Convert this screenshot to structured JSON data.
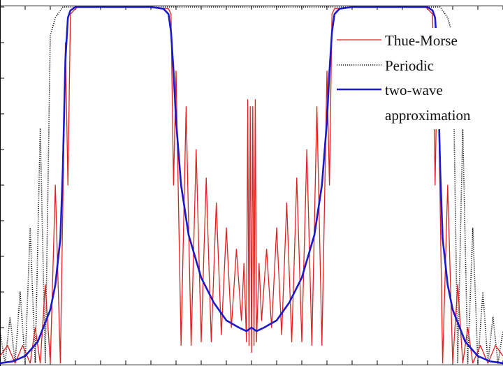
{
  "chart_data": {
    "type": "line",
    "title": "",
    "xlabel": "",
    "ylabel": "",
    "xlim": [
      -1.0,
      1.0
    ],
    "ylim": [
      0.0,
      1.0
    ],
    "grid": false,
    "legend_position": "top-right",
    "legend": {
      "entries": [
        "Thue-Morse",
        "Periodic",
        "two-wave",
        "approximation"
      ]
    },
    "series": [
      {
        "name": "Thue-Morse",
        "style": "solid",
        "color": "#e02020",
        "x": [
          -1.0,
          -0.97,
          -0.94,
          -0.91,
          -0.88,
          -0.86,
          -0.84,
          -0.82,
          -0.8,
          -0.78,
          -0.76,
          -0.74,
          -0.73,
          -0.72,
          -0.7,
          -0.69,
          -0.68,
          -0.6,
          -0.4,
          -0.33,
          -0.32,
          -0.31,
          -0.3,
          -0.28,
          -0.26,
          -0.24,
          -0.22,
          -0.2,
          -0.18,
          -0.16,
          -0.14,
          -0.12,
          -0.1,
          -0.08,
          -0.06,
          -0.04,
          -0.03,
          -0.02,
          -0.015,
          -0.01,
          -0.005,
          0.0,
          0.005,
          0.01,
          0.015,
          0.02,
          0.03,
          0.04,
          0.06,
          0.08,
          0.1,
          0.12,
          0.14,
          0.16,
          0.18,
          0.2,
          0.22,
          0.24,
          0.26,
          0.28,
          0.3,
          0.31,
          0.32,
          0.33,
          0.4,
          0.6,
          0.68,
          0.69,
          0.7,
          0.72,
          0.73,
          0.74,
          0.76,
          0.78,
          0.8,
          0.82,
          0.84,
          0.86,
          0.88,
          0.91,
          0.94,
          0.97,
          1.0
        ],
        "y": [
          0.02,
          0.05,
          0.0,
          0.05,
          0.0,
          0.1,
          0.0,
          0.22,
          0.0,
          0.5,
          0.0,
          0.9,
          0.5,
          0.98,
          0.995,
          1.0,
          1.0,
          1.0,
          1.0,
          0.995,
          0.98,
          0.5,
          0.82,
          0.05,
          0.72,
          0.05,
          0.6,
          0.06,
          0.52,
          0.06,
          0.45,
          0.08,
          0.38,
          0.1,
          0.32,
          0.12,
          0.28,
          0.06,
          0.74,
          0.05,
          0.72,
          0.03,
          0.72,
          0.05,
          0.74,
          0.06,
          0.28,
          0.12,
          0.32,
          0.1,
          0.38,
          0.08,
          0.45,
          0.06,
          0.52,
          0.06,
          0.6,
          0.05,
          0.72,
          0.05,
          0.82,
          0.5,
          0.98,
          0.995,
          1.0,
          1.0,
          1.0,
          1.0,
          0.995,
          0.98,
          0.5,
          0.9,
          0.0,
          0.5,
          0.0,
          0.22,
          0.0,
          0.1,
          0.0,
          0.05,
          0.0,
          0.05,
          0.02
        ]
      },
      {
        "name": "Periodic",
        "style": "dotted",
        "color": "#111111",
        "x": [
          -1.0,
          -0.98,
          -0.96,
          -0.94,
          -0.92,
          -0.9,
          -0.88,
          -0.86,
          -0.84,
          -0.82,
          -0.8,
          -0.78,
          -0.76,
          -0.75,
          -0.74,
          -0.73,
          -0.72,
          -0.6,
          -0.4,
          -0.2,
          0.0,
          0.2,
          0.4,
          0.6,
          0.72,
          0.73,
          0.74,
          0.75,
          0.76,
          0.78,
          0.8,
          0.82,
          0.84,
          0.86,
          0.88,
          0.9,
          0.92,
          0.94,
          0.96,
          0.98,
          1.0
        ],
        "y": [
          0.09,
          0.0,
          0.13,
          0.0,
          0.2,
          0.0,
          0.38,
          0.0,
          0.66,
          0.0,
          0.92,
          0.97,
          0.99,
          1.0,
          1.0,
          1.0,
          1.0,
          1.0,
          1.0,
          1.0,
          1.0,
          1.0,
          1.0,
          1.0,
          1.0,
          1.0,
          1.0,
          1.0,
          0.99,
          0.97,
          0.92,
          0.0,
          0.66,
          0.0,
          0.38,
          0.0,
          0.2,
          0.0,
          0.13,
          0.0,
          0.09
        ]
      },
      {
        "name": "two-wave approximation",
        "style": "solid",
        "color": "#1a1acc",
        "x": [
          -1.0,
          -0.95,
          -0.9,
          -0.85,
          -0.8,
          -0.78,
          -0.76,
          -0.75,
          -0.74,
          -0.73,
          -0.72,
          -0.7,
          -0.6,
          -0.4,
          -0.35,
          -0.33,
          -0.32,
          -0.31,
          -0.3,
          -0.28,
          -0.25,
          -0.2,
          -0.15,
          -0.1,
          -0.05,
          -0.02,
          0.0,
          0.02,
          0.05,
          0.1,
          0.15,
          0.2,
          0.25,
          0.28,
          0.3,
          0.31,
          0.32,
          0.33,
          0.35,
          0.4,
          0.6,
          0.7,
          0.72,
          0.73,
          0.74,
          0.75,
          0.76,
          0.78,
          0.8,
          0.85,
          0.9,
          0.95,
          1.0
        ],
        "y": [
          0.0,
          0.005,
          0.02,
          0.06,
          0.15,
          0.22,
          0.35,
          0.55,
          0.85,
          0.97,
          0.99,
          1.0,
          1.0,
          1.0,
          0.995,
          0.98,
          0.93,
          0.82,
          0.68,
          0.5,
          0.36,
          0.24,
          0.17,
          0.12,
          0.1,
          0.09,
          0.1,
          0.09,
          0.1,
          0.12,
          0.17,
          0.24,
          0.36,
          0.5,
          0.68,
          0.82,
          0.93,
          0.98,
          0.995,
          1.0,
          1.0,
          1.0,
          0.99,
          0.97,
          0.85,
          0.55,
          0.35,
          0.22,
          0.15,
          0.06,
          0.02,
          0.005,
          0.0
        ]
      }
    ]
  }
}
